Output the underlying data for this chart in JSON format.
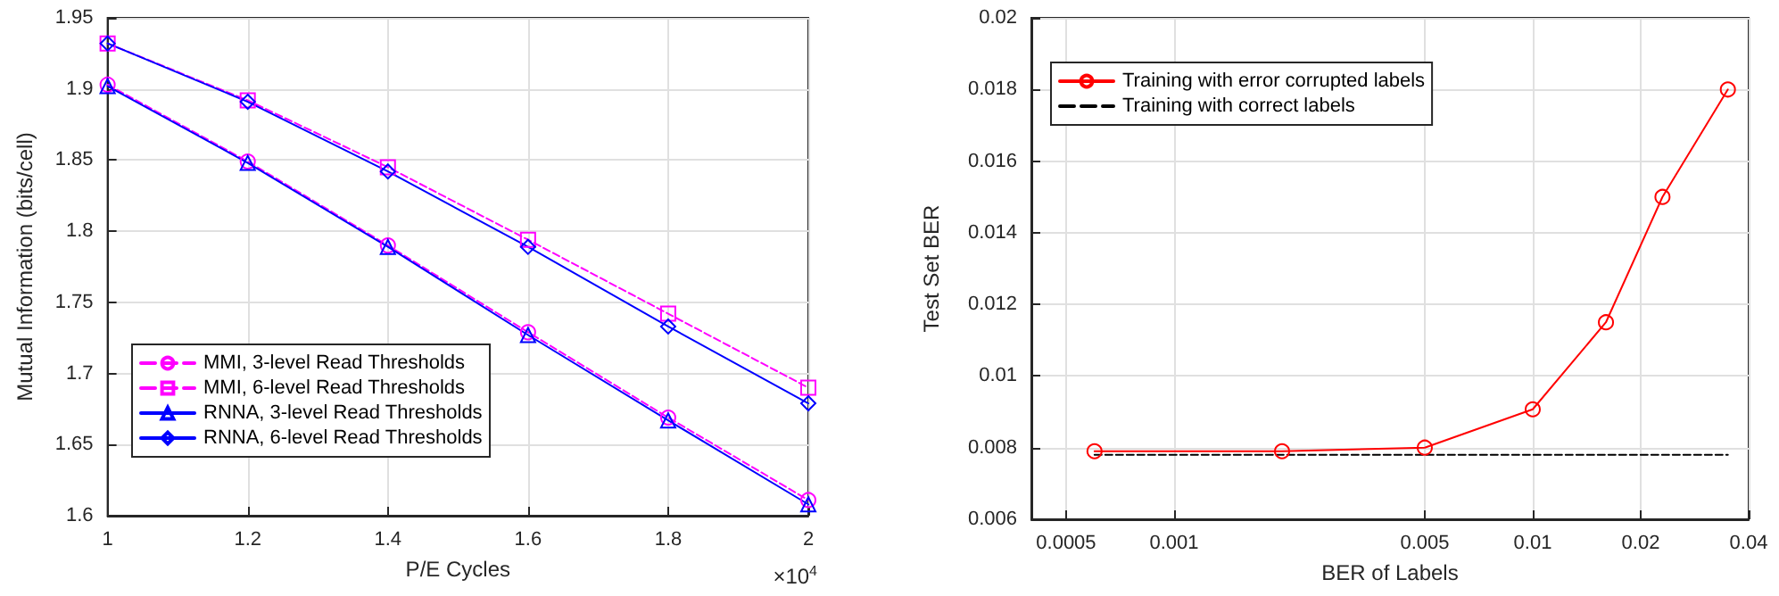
{
  "chart_data": [
    {
      "type": "line",
      "xlabel": "P/E Cycles",
      "ylabel": "Mutual Information (bits/cell)",
      "annotations": [
        "×10$^{4}$"
      ],
      "x": [
        1,
        1.2,
        1.4,
        1.6,
        1.8,
        2
      ],
      "series": [
        {
          "name": "MMI, 3-level Read Thresholds",
          "color": "#ff00ff",
          "line_style": "dashed",
          "marker": "circle",
          "values": [
            1.903,
            1.849,
            1.79,
            1.729,
            1.669,
            1.611
          ]
        },
        {
          "name": "MMI, 6-level Read Thresholds",
          "color": "#ff00ff",
          "line_style": "dashed",
          "marker": "square",
          "values": [
            1.932,
            1.892,
            1.845,
            1.794,
            1.742,
            1.69
          ]
        },
        {
          "name": "RNNA, 3-level Read Thresholds",
          "color": "#0000ff",
          "line_style": "solid",
          "marker": "triangle",
          "values": [
            1.902,
            1.848,
            1.789,
            1.727,
            1.667,
            1.608
          ]
        },
        {
          "name": "RNNA, 6-level Read Thresholds",
          "color": "#0000ff",
          "line_style": "solid",
          "marker": "diamond",
          "values": [
            1.932,
            1.891,
            1.842,
            1.789,
            1.733,
            1.679
          ]
        }
      ],
      "xlim": [
        1,
        2
      ],
      "xticks": [
        1,
        1.2,
        1.4,
        1.6,
        1.8,
        2
      ],
      "ylim": [
        1.6,
        1.95
      ],
      "yticks": [
        1.6,
        1.65,
        1.7,
        1.75,
        1.8,
        1.85,
        1.9,
        1.95
      ],
      "grid": true,
      "legend": "bottom left"
    },
    {
      "type": "line",
      "xlabel": "BER of Labels",
      "ylabel": "Test Set BER",
      "series": [
        {
          "name": "Training with error corrupted labels",
          "color": "#ff0000",
          "line_style": "solid",
          "marker": "circle",
          "x": [
            0.0006,
            0.002,
            0.005,
            0.01,
            0.016,
            0.023,
            0.035
          ],
          "values": [
            0.0079,
            0.0079,
            0.008,
            0.00907,
            0.0115,
            0.015,
            0.018
          ]
        },
        {
          "name": "Training with correct labels",
          "color": "#000000",
          "line_style": "dashed",
          "marker": "none",
          "x": [
            0.0006,
            0.035
          ],
          "values": [
            0.0078,
            0.0078
          ]
        }
      ],
      "xlim": [
        0.0004,
        0.04
      ],
      "xticks": [
        0.0005,
        0.001,
        0.005,
        0.01,
        0.02,
        0.04
      ],
      "ylim": [
        0.006,
        0.02
      ],
      "yticks": [
        0.006,
        0.008,
        0.01,
        0.012,
        0.014,
        0.016,
        0.018,
        0.02
      ],
      "log": "x",
      "grid": true,
      "legend": "top left"
    }
  ]
}
